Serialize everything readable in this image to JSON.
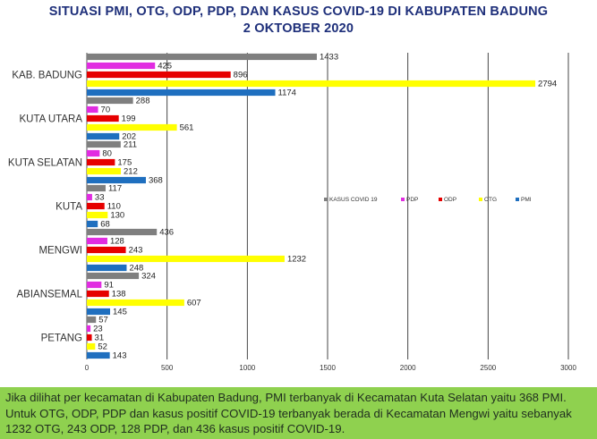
{
  "chart_data": {
    "type": "bar",
    "orientation": "horizontal",
    "title": "SITUASI PMI, OTG, ODP, PDP, DAN KASUS COVID-19 DI KABUPATEN BADUNG",
    "subtitle": "2 OKTOBER 2020",
    "categories": [
      "KAB. BADUNG",
      "KUTA UTARA",
      "KUTA SELATAN",
      "KUTA",
      "MENGWI",
      "ABIANSEMAL",
      "PETANG"
    ],
    "series": [
      {
        "name": "KASUS COVID 19",
        "color": "#7f7f7f",
        "values": [
          1433,
          288,
          211,
          117,
          436,
          324,
          57
        ]
      },
      {
        "name": "PDP",
        "color": "#e12ce1",
        "values": [
          425,
          70,
          80,
          33,
          128,
          91,
          23
        ]
      },
      {
        "name": "ODP",
        "color": "#e60000",
        "values": [
          896,
          199,
          175,
          110,
          243,
          138,
          31
        ]
      },
      {
        "name": "OTG",
        "color": "#ffff00",
        "values": [
          2794,
          561,
          212,
          130,
          1232,
          607,
          52
        ]
      },
      {
        "name": "PMI",
        "color": "#1f6fbf",
        "values": [
          1174,
          202,
          368,
          68,
          248,
          145,
          143
        ]
      }
    ],
    "xlim": [
      0,
      3000
    ],
    "xticks": [
      "0",
      "500",
      "1000",
      "1500",
      "2000",
      "2500",
      "3000"
    ],
    "grid": true,
    "legend_position": "right-middle"
  },
  "caption": "Jika dilihat per kecamatan di Kabupaten Badung, PMI terbanyak di Kecamatan Kuta Selatan yaitu 368 PMI. Untuk OTG, ODP, PDP dan kasus positif COVID-19 terbanyak berada di Kecamatan Mengwi yaitu sebanyak 1232 OTG, 243 ODP, 128 PDP, dan 436 kasus positif COVID-19.",
  "colors": {
    "background": "#8fd14f",
    "title": "#1e2f7a"
  }
}
